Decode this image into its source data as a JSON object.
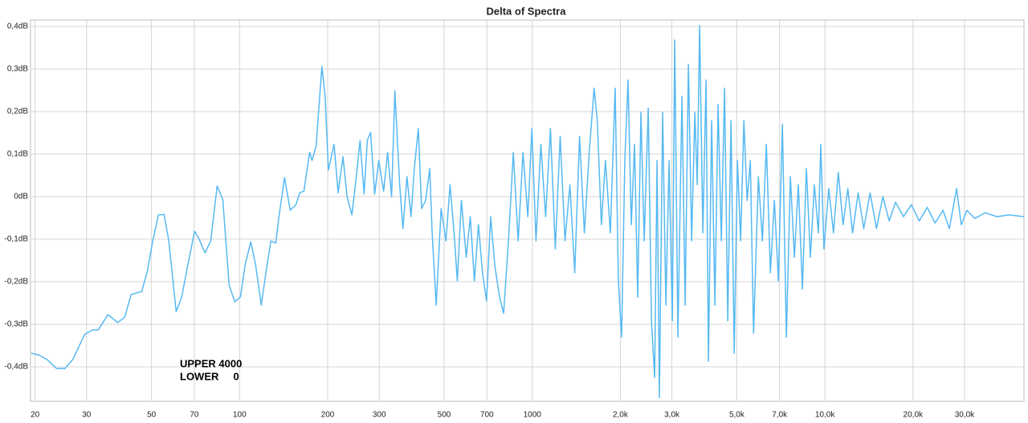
{
  "chart_data": {
    "type": "line",
    "title": "Delta of Spectra",
    "xscale": "log",
    "grid": true,
    "color": "#56b9f2",
    "xlim": [
      19.3,
      47900
    ],
    "ylim": [
      -0.481,
      0.415
    ],
    "xticks": [
      20,
      30,
      50,
      70,
      100,
      200,
      300,
      500,
      700,
      1000,
      {
        "value": 2000,
        "label": "2,0k"
      },
      {
        "value": 3000,
        "label": "3,0k"
      },
      {
        "value": 5000,
        "label": "5,0k"
      },
      {
        "value": 7000,
        "label": "7,0k"
      },
      {
        "value": 10000,
        "label": "10,0k"
      },
      {
        "value": 20000,
        "label": "20,0k"
      },
      {
        "value": 30000,
        "label": "30,0k"
      }
    ],
    "yticks": [
      {
        "value": 0.4,
        "label": "0,4dB"
      },
      {
        "value": 0.3,
        "label": "0,3dB"
      },
      {
        "value": 0.2,
        "label": "0,2dB"
      },
      {
        "value": 0.1,
        "label": "0,1dB"
      },
      {
        "value": 0,
        "label": "0dB"
      },
      {
        "value": -0.1,
        "label": "-0,1dB"
      },
      {
        "value": -0.2,
        "label": "-0,2dB"
      },
      {
        "value": -0.3,
        "label": "-0,3dB"
      },
      {
        "value": -0.4,
        "label": "-0,4dB"
      }
    ],
    "annotations": [
      "UPPER 4000",
      "LOWER     0"
    ],
    "x": [
      19.4,
      20.6,
      22,
      23.7,
      25.3,
      26.9,
      29.6,
      31.5,
      32.9,
      35.5,
      38.3,
      40.5,
      42.6,
      44.6,
      46.3,
      48.4,
      50.5,
      52.8,
      55.2,
      57.3,
      60.7,
      63.4,
      66.3,
      70.2,
      72.5,
      76.2,
      79.7,
      83.8,
      87.6,
      92.1,
      96.3,
      100.6,
      104.5,
      109.2,
      113.4,
      118.6,
      123.2,
      127.9,
      132.9,
      136.3,
      142.4,
      148.9,
      155.7,
      160.7,
      165.9,
      173.5,
      176.8,
      182.6,
      191.1,
      196,
      201.1,
      210.3,
      217.1,
      225.6,
      232.9,
      242,
      251.4,
      258,
      266.4,
      273.2,
      280.3,
      289.5,
      298.9,
      310.6,
      320.5,
      330.7,
      339.3,
      352.4,
      361.5,
      373.2,
      385.3,
      395.3,
      408.1,
      418.7,
      432.3,
      446.4,
      455,
      469.8,
      488.2,
      507.2,
      523.7,
      540.7,
      554.7,
      572.7,
      595,
      614.3,
      634.3,
      654.9,
      676.2,
      698.2,
      720.9,
      744.4,
      773.3,
      798.4,
      829.4,
      861.6,
      895.1,
      929.8,
      965.9,
      997.3,
      1030,
      1070,
      1111,
      1154,
      1199,
      1246,
      1294,
      1345,
      1397,
      1451,
      1507,
      1566,
      1627,
      1668,
      1723,
      1779,
      1849,
      1920,
      1969,
      2020,
      2072,
      2125,
      2180,
      2236,
      2293,
      2352,
      2413,
      2491,
      2555,
      2620,
      2670,
      2720,
      2790,
      2862,
      2935,
      3011,
      3068,
      3146,
      3248,
      3331,
      3417,
      3505,
      3595,
      3663,
      3732,
      3828,
      3926,
      4000,
      4103,
      4208,
      4316,
      4427,
      4541,
      4657,
      4777,
      4900,
      5025,
      5154,
      5287,
      5423,
      5562,
      5705,
      5926,
      6116,
      6311,
      6513,
      6721,
      6936,
      7158,
      7387,
      7623,
      7867,
      8118,
      8378,
      8646,
      8922,
      9207,
      9502,
      9682,
      9927,
      10308,
      10702,
      11112,
      11536,
      11977,
      12435,
      12994,
      13577,
      14274,
      15006,
      15776,
      16585,
      17436,
      18557,
      19749,
      21018,
      22369,
      23806,
      25336,
      26636,
      28177,
      29253,
      30561,
      32526,
      35291,
      38756,
      42557,
      47900
    ],
    "values": [
      -0.368,
      -0.372,
      -0.383,
      -0.404,
      -0.404,
      -0.383,
      -0.323,
      -0.313,
      -0.313,
      -0.277,
      -0.296,
      -0.283,
      -0.23,
      -0.226,
      -0.223,
      -0.175,
      -0.104,
      -0.043,
      -0.042,
      -0.104,
      -0.27,
      -0.236,
      -0.166,
      -0.081,
      -0.098,
      -0.132,
      -0.104,
      0.025,
      -0.006,
      -0.208,
      -0.247,
      -0.236,
      -0.16,
      -0.106,
      -0.16,
      -0.255,
      -0.175,
      -0.104,
      -0.109,
      -0.047,
      0.045,
      -0.032,
      -0.019,
      0.009,
      0.013,
      0.104,
      0.085,
      0.119,
      0.306,
      0.236,
      0.062,
      0.123,
      0.009,
      0.094,
      0,
      -0.043,
      0.057,
      0.132,
      0.006,
      0.132,
      0.151,
      0.006,
      0.085,
      0.013,
      0.104,
      0,
      0.249,
      0.028,
      -0.075,
      0.047,
      -0.047,
      0.066,
      0.16,
      -0.028,
      -0.009,
      0.066,
      -0.085,
      -0.255,
      -0.028,
      -0.104,
      0.028,
      -0.085,
      -0.198,
      -0.009,
      -0.142,
      -0.047,
      -0.198,
      -0.066,
      -0.179,
      -0.245,
      -0.047,
      -0.16,
      -0.236,
      -0.274,
      -0.104,
      0.104,
      -0.104,
      0.104,
      -0.047,
      0.16,
      -0.104,
      0.123,
      -0.047,
      0.16,
      -0.123,
      0.142,
      -0.104,
      0.028,
      -0.179,
      0.142,
      -0.085,
      0.104,
      0.255,
      0.179,
      -0.066,
      0.085,
      -0.085,
      0.255,
      -0.198,
      -0.33,
      0.085,
      0.274,
      -0.066,
      0.123,
      -0.236,
      0.198,
      -0.104,
      0.208,
      -0.292,
      -0.425,
      0.085,
      -0.472,
      0.198,
      -0.255,
      0.085,
      -0.292,
      0.368,
      -0.33,
      0.236,
      -0.255,
      0.311,
      -0.104,
      0.198,
      0.028,
      0.402,
      -0.085,
      0.274,
      -0.387,
      0.179,
      -0.255,
      0.217,
      -0.104,
      0.255,
      -0.292,
      0.179,
      -0.368,
      0.085,
      -0.104,
      0.179,
      -0.009,
      0.085,
      -0.321,
      0.047,
      -0.104,
      0.123,
      -0.179,
      -0.009,
      -0.198,
      0.17,
      -0.33,
      0.047,
      -0.142,
      0.028,
      -0.217,
      0.066,
      -0.142,
      0.028,
      -0.085,
      0.123,
      -0.123,
      0.019,
      -0.085,
      0.057,
      -0.066,
      0.019,
      -0.085,
      0.009,
      -0.075,
      0.009,
      -0.075,
      0,
      -0.057,
      -0.013,
      -0.047,
      -0.019,
      -0.057,
      -0.025,
      -0.062,
      -0.032,
      -0.075,
      0.019,
      -0.066,
      -0.032,
      -0.051,
      -0.038,
      -0.047,
      -0.043,
      -0.047
    ]
  }
}
